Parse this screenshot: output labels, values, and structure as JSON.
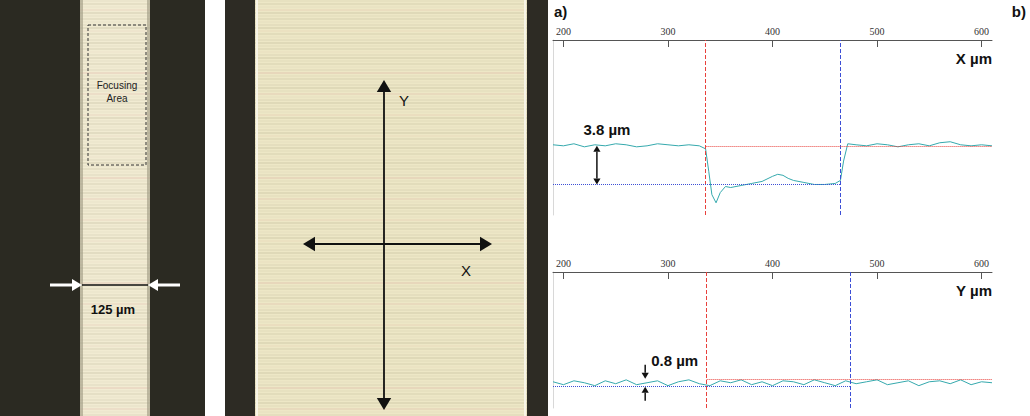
{
  "figure_labels": [
    "a)",
    "b)"
  ],
  "images": [
    {
      "annotation": "Focusing Area",
      "width_label": "125 µm"
    },
    {
      "arrow_labels": [
        "Y",
        "X"
      ]
    }
  ],
  "chart_data": [
    {
      "type": "line",
      "xlabel": "X µm",
      "xlim": [
        190,
        610
      ],
      "xticks": [
        200,
        300,
        400,
        500,
        600
      ],
      "ylim": [
        -6.8,
        10.4
      ],
      "tick_labels": "x",
      "color": "#35a9ad",
      "x": [
        190,
        200,
        210,
        220,
        230,
        240,
        250,
        260,
        270,
        280,
        290,
        300,
        310,
        320,
        330,
        336,
        339,
        342,
        346,
        350,
        355,
        360,
        370,
        380,
        390,
        400,
        405,
        410,
        415,
        420,
        430,
        440,
        450,
        460,
        465,
        468,
        472,
        480,
        490,
        500,
        510,
        520,
        530,
        540,
        550,
        560,
        570,
        580,
        590,
        600,
        610
      ],
      "values": [
        0.1,
        0,
        0.2,
        -0.1,
        0.1,
        0,
        0.2,
        0.1,
        -0.1,
        0,
        0.2,
        0.1,
        0,
        0.1,
        0,
        -0.3,
        -2.5,
        -4.8,
        -5.6,
        -4.6,
        -4.0,
        -4.1,
        -3.9,
        -3.7,
        -3.5,
        -3.0,
        -2.8,
        -2.9,
        -3.2,
        -3.4,
        -3.6,
        -3.8,
        -3.8,
        -3.7,
        -3.4,
        -1.5,
        0.2,
        0.1,
        0,
        0.2,
        0.1,
        -0.1,
        0.1,
        0.2,
        0,
        0.3,
        0.4,
        0.1,
        0,
        0.1,
        0
      ],
      "cursors": {
        "x": [
          336,
          465
        ],
        "y": [
          0,
          -3.8
        ],
        "colors": [
          "#e8413c",
          "#3d4fd6"
        ]
      },
      "annotation": "3.8 µm"
    },
    {
      "type": "line",
      "xlabel": "Y µm",
      "xlim": [
        190,
        610
      ],
      "xticks": [
        200,
        300,
        400,
        500,
        600
      ],
      "ylim": [
        -2.6,
        11.4
      ],
      "tick_labels": "x",
      "color": "#35a9ad",
      "x": [
        190,
        200,
        210,
        220,
        230,
        240,
        250,
        260,
        270,
        280,
        290,
        300,
        310,
        320,
        330,
        340,
        350,
        360,
        370,
        380,
        390,
        400,
        410,
        420,
        430,
        440,
        450,
        460,
        470,
        480,
        490,
        500,
        510,
        520,
        530,
        540,
        550,
        560,
        570,
        580,
        590,
        600,
        610
      ],
      "values": [
        0.1,
        -0.2,
        0.2,
        0,
        -0.3,
        0.2,
        -0.1,
        0.3,
        -0.2,
        0,
        0.2,
        -0.3,
        0.1,
        0.3,
        -0.1,
        -0.3,
        0.2,
        0,
        0.3,
        -0.2,
        0.1,
        -0.3,
        0.2,
        0.1,
        -0.2,
        0.3,
        0,
        -0.3,
        0.2,
        -0.1,
        0.1,
        0.3,
        -0.2,
        0,
        0.2,
        -0.3,
        0.1,
        0.2,
        -0.1,
        0.3,
        -0.2,
        0.1,
        0
      ],
      "cursors": {
        "x": [
          337,
          474
        ],
        "y": [
          0.4,
          -0.4
        ],
        "colors": [
          "#e8413c",
          "#3d4fd6"
        ]
      },
      "annotation": "0.8 µm"
    }
  ]
}
